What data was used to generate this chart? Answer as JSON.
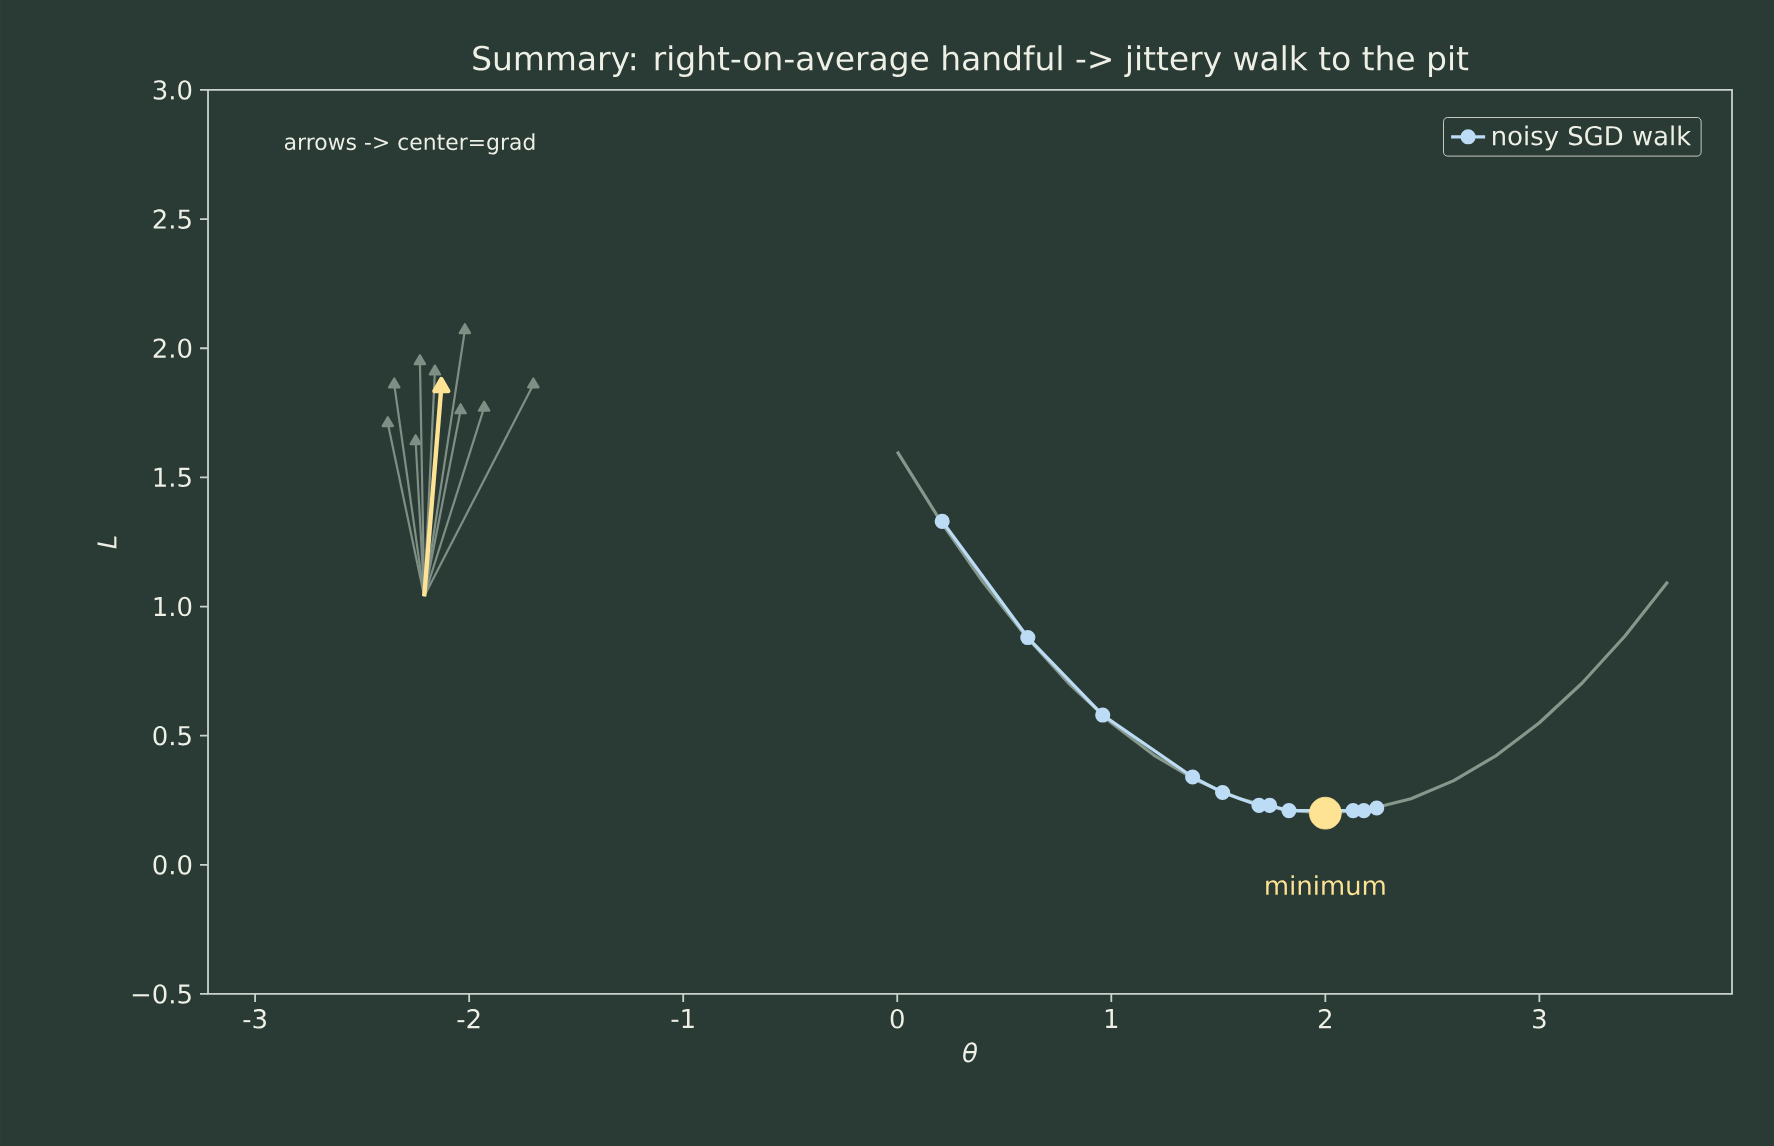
{
  "chart_data": {
    "type": "line",
    "title": "Summary: right-on-average handful -> jittery walk to the pit",
    "xlabel": "θ",
    "ylabel": "L",
    "xlim": [
      -3.22,
      3.9
    ],
    "ylim": [
      -0.5,
      3.0
    ],
    "xticks": [
      -3,
      -2,
      -1,
      0,
      1,
      2,
      3
    ],
    "yticks": [
      {
        "value": -0.5,
        "label": "−0.5"
      },
      {
        "value": 0,
        "label": "0.0"
      },
      {
        "value": 0.5,
        "label": "0.5"
      },
      {
        "value": 1,
        "label": "1.0"
      },
      {
        "value": 1.5,
        "label": "1.5"
      },
      {
        "value": 2,
        "label": "2.0"
      },
      {
        "value": 2.5,
        "label": "2.5"
      },
      {
        "value": 3,
        "label": "3.0"
      }
    ],
    "legend": "top right",
    "annotations": [
      "arrows -> center=grad",
      "minimum"
    ],
    "series": [
      {
        "color": "#86978c",
        "x": [
          0,
          0.2,
          0.4,
          0.6,
          0.8,
          1.0,
          1.2,
          1.4,
          1.6,
          1.8,
          2.0,
          2.2,
          2.4,
          2.6,
          2.8,
          3.0,
          3.2,
          3.4,
          3.6
        ],
        "values": [
          1.6,
          1.334,
          1.096,
          0.886,
          0.704,
          0.55,
          0.424,
          0.326,
          0.256,
          0.214,
          0.2,
          0.214,
          0.256,
          0.326,
          0.424,
          0.55,
          0.704,
          0.886,
          1.096
        ]
      },
      {
        "color": "#7f8f85",
        "marker": "triangle",
        "x": [
          -2.21,
          -2.02
        ],
        "values": [
          1.04,
          2.07
        ]
      },
      {
        "color": "#7f8f85",
        "marker": "triangle",
        "x": [
          -2.21,
          -2.23
        ],
        "values": [
          1.04,
          1.95
        ]
      },
      {
        "color": "#7f8f85",
        "marker": "triangle",
        "x": [
          -2.21,
          -2.16
        ],
        "values": [
          1.04,
          1.91
        ]
      },
      {
        "color": "#7f8f85",
        "marker": "triangle",
        "x": [
          -2.21,
          -2.35
        ],
        "values": [
          1.04,
          1.86
        ]
      },
      {
        "color": "#7f8f85",
        "marker": "triangle",
        "x": [
          -2.21,
          -1.7
        ],
        "values": [
          1.04,
          1.86
        ]
      },
      {
        "color": "#7f8f85",
        "marker": "triangle",
        "x": [
          -2.21,
          -2.38
        ],
        "values": [
          1.04,
          1.71
        ]
      },
      {
        "color": "#7f8f85",
        "marker": "triangle",
        "x": [
          -2.21,
          -2.25
        ],
        "values": [
          1.04,
          1.64
        ]
      },
      {
        "color": "#7f8f85",
        "marker": "triangle",
        "x": [
          -2.21,
          -2.04
        ],
        "values": [
          1.04,
          1.76
        ]
      },
      {
        "color": "#7f8f85",
        "marker": "triangle",
        "x": [
          -2.21,
          -1.93
        ],
        "values": [
          1.04,
          1.77
        ]
      },
      {
        "color": "#ffe394",
        "marker": "triangle",
        "x": [
          -2.21,
          -2.13
        ],
        "values": [
          1.04,
          1.85
        ]
      },
      {
        "name": "noisy SGD walk",
        "color": "#bcdcf6",
        "marker": "circle",
        "x": [
          0.21,
          0.61,
          0.96,
          1.38,
          1.52,
          1.69,
          1.74,
          1.83,
          2.13,
          2.18,
          2.24
        ],
        "values": [
          1.33,
          0.88,
          0.58,
          0.34,
          0.28,
          0.23,
          0.23,
          0.21,
          0.21,
          0.21,
          0.22
        ]
      },
      {
        "type": "scatter",
        "color": "#ffe394",
        "marker": "circle",
        "x": [
          2
        ],
        "values": [
          0.2
        ]
      }
    ]
  }
}
